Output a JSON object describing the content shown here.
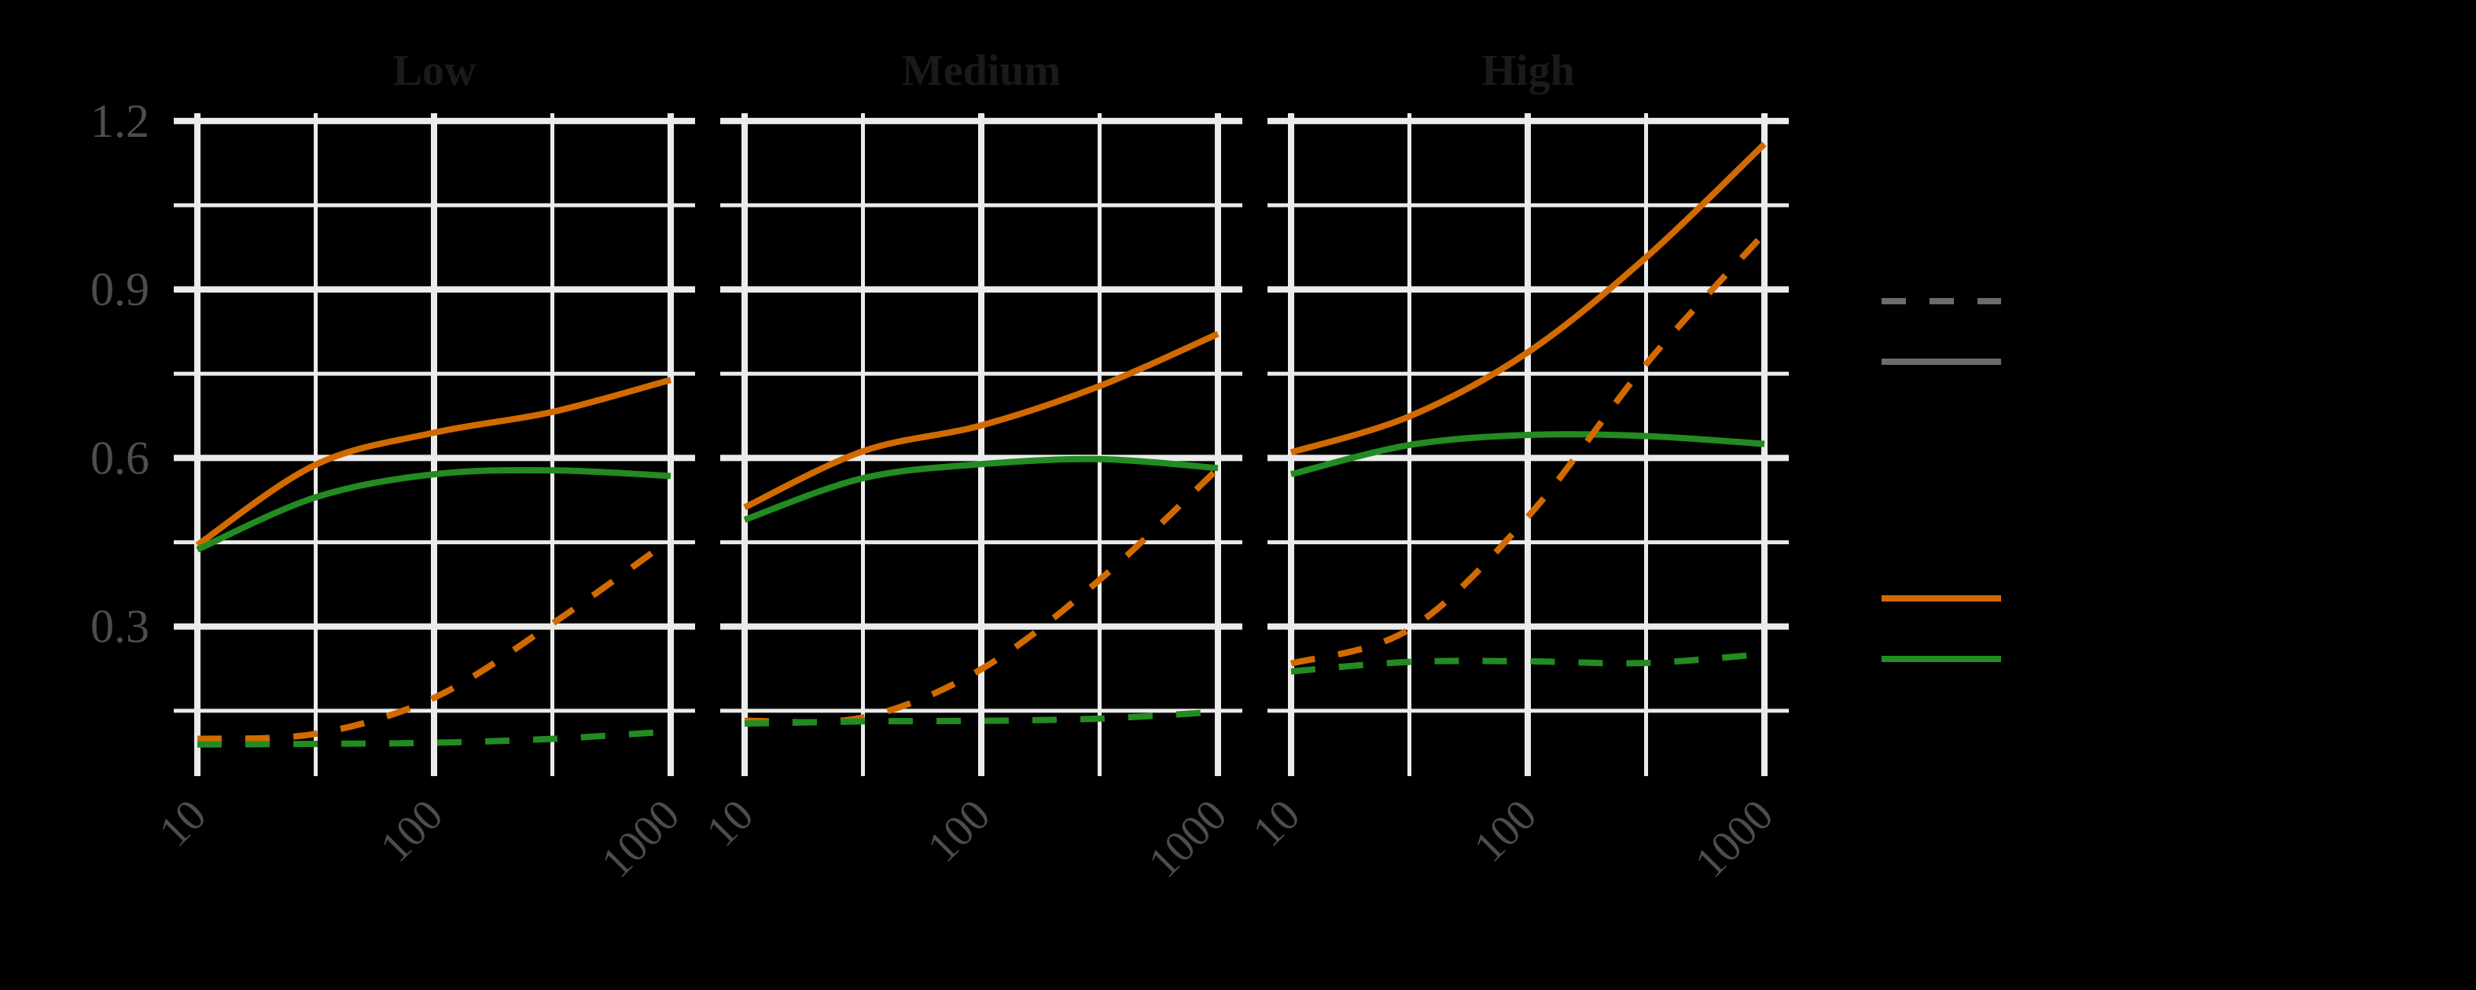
{
  "chart_data": {
    "type": "line",
    "title": "",
    "xlabel": "",
    "ylabel": "",
    "x_scale": "log10",
    "x_ticks": [
      10,
      100,
      1000
    ],
    "x_tick_labels": [
      "10",
      "100",
      "1000"
    ],
    "y_ticks": [
      0.3,
      0.6,
      0.9,
      1.2
    ],
    "y_tick_labels": [
      "0.3",
      "0.6",
      "0.9",
      "1.2"
    ],
    "y_minor_gridlines": [
      0.15,
      0.45,
      0.75,
      1.05
    ],
    "ylim": [
      0.0,
      1.2
    ],
    "xlim": [
      10,
      1000
    ],
    "grid": true,
    "legend_position": "right",
    "legend": {
      "linetype_entries": [
        {
          "linetype": "dashed",
          "color": "#6b6b6b",
          "label": ""
        },
        {
          "linetype": "solid",
          "color": "#6b6b6b",
          "label": ""
        }
      ],
      "color_entries": [
        {
          "linetype": "solid",
          "color": "#D26A00",
          "label": ""
        },
        {
          "linetype": "solid",
          "color": "#228B22",
          "label": ""
        }
      ]
    },
    "x": [
      10,
      31.6,
      100,
      316,
      1000
    ],
    "facets": [
      {
        "title": "Low",
        "series": [
          {
            "name": "orange-solid",
            "color": "#D26A00",
            "linetype": "solid",
            "values": [
              0.445,
              0.588,
              0.645,
              0.682,
              0.739
            ]
          },
          {
            "name": "green-solid",
            "color": "#228B22",
            "linetype": "solid",
            "values": [
              0.437,
              0.53,
              0.571,
              0.578,
              0.568
            ]
          },
          {
            "name": "orange-dashed",
            "color": "#D26A00",
            "linetype": "dashed",
            "values": [
              0.1,
              0.109,
              0.173,
              0.305,
              0.455
            ]
          },
          {
            "name": "green-dashed",
            "color": "#228B22",
            "linetype": "dashed",
            "values": [
              0.09,
              0.091,
              0.093,
              0.1,
              0.113
            ]
          }
        ]
      },
      {
        "title": "Medium",
        "series": [
          {
            "name": "orange-solid",
            "color": "#D26A00",
            "linetype": "solid",
            "values": [
              0.512,
              0.612,
              0.658,
              0.728,
              0.821
            ]
          },
          {
            "name": "green-solid",
            "color": "#228B22",
            "linetype": "solid",
            "values": [
              0.49,
              0.564,
              0.589,
              0.598,
              0.582
            ]
          },
          {
            "name": "orange-dashed",
            "color": "#D26A00",
            "linetype": "dashed",
            "values": [
              0.132,
              0.138,
              0.224,
              0.383,
              0.581
            ]
          },
          {
            "name": "green-dashed",
            "color": "#228B22",
            "linetype": "dashed",
            "values": [
              0.127,
              0.131,
              0.132,
              0.136,
              0.148
            ]
          }
        ]
      },
      {
        "title": "High",
        "series": [
          {
            "name": "orange-solid",
            "color": "#D26A00",
            "linetype": "solid",
            "values": [
              0.61,
              0.674,
              0.788,
              0.957,
              1.159
            ]
          },
          {
            "name": "green-solid",
            "color": "#228B22",
            "linetype": "solid",
            "values": [
              0.571,
              0.623,
              0.641,
              0.639,
              0.625
            ]
          },
          {
            "name": "orange-dashed",
            "color": "#D26A00",
            "linetype": "dashed",
            "values": [
              0.234,
              0.295,
              0.495,
              0.767,
              1.0
            ]
          },
          {
            "name": "green-dashed",
            "color": "#228B22",
            "linetype": "dashed",
            "values": [
              0.22,
              0.237,
              0.238,
              0.235,
              0.251
            ]
          }
        ]
      }
    ]
  },
  "style": {
    "background": "#000000",
    "grid_color": "#ebebeb",
    "tick_label_color": "#4d4d4d",
    "facet_title_color": "#1a1a1a"
  }
}
